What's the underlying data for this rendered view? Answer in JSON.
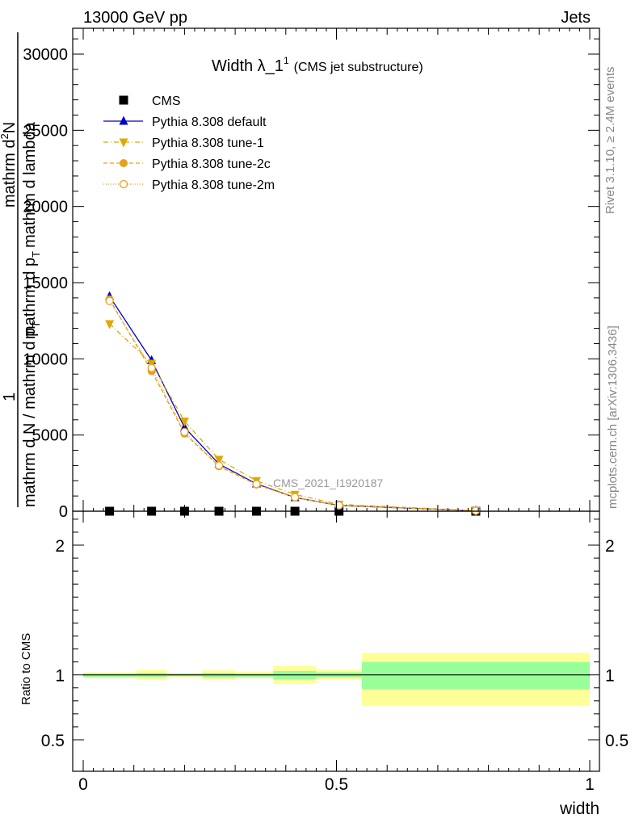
{
  "header": {
    "left": "13000 GeV pp",
    "right": "Jets"
  },
  "side_text": {
    "rivet": "Rivet 3.1.10, ≥ 2.4M events",
    "mcplots": "mcplots.cern.ch [arXiv:1306.3436]"
  },
  "chart_data": {
    "type": "line",
    "title": "Width λ_1",
    "title_sup": "1",
    "title_sub": "(CMS jet substructure)",
    "watermark": "CMS_2021_I1920187",
    "ylabel": {
      "one": "1",
      "mid": "mathrm d N / mathrm d p",
      "mid_sub": "T",
      "top": "mathrm d",
      "top_sup": "2",
      "top_tail": "N",
      "bottom": "mathrm d p",
      "bottom_sub": "T",
      "bottom_tail": "mathrm d lambda"
    },
    "xlabel": "width",
    "xlim": [
      0,
      1
    ],
    "ylim": [
      0,
      32000
    ],
    "x_ticks": [
      {
        "value": 0,
        "label": "0"
      },
      {
        "value": 0.5,
        "label": "0.5"
      },
      {
        "value": 1,
        "label": "1"
      }
    ],
    "y_ticks": [
      {
        "value": 0,
        "label": "0"
      },
      {
        "value": 5000,
        "label": "5000"
      },
      {
        "value": 10000,
        "label": "10000"
      },
      {
        "value": 15000,
        "label": "15000"
      },
      {
        "value": 20000,
        "label": "20000"
      },
      {
        "value": 25000,
        "label": "25000"
      },
      {
        "value": 30000,
        "label": "30000"
      }
    ],
    "bins": [
      0,
      0.105,
      0.165,
      0.235,
      0.3,
      0.375,
      0.46,
      0.55,
      1.0
    ],
    "x": [
      0.052,
      0.135,
      0.2,
      0.268,
      0.342,
      0.418,
      0.505,
      0.775
    ],
    "series": [
      {
        "name": "CMS",
        "marker": "square",
        "color": "#000000",
        "dash": "",
        "values": [
          0,
          0,
          0,
          0,
          0,
          0,
          0,
          0
        ]
      },
      {
        "name": "Pythia 8.308 default",
        "marker": "triangle-up",
        "color": "#0000cc",
        "dash": "",
        "values": [
          14100,
          9900,
          5500,
          3100,
          1800,
          900,
          380,
          30
        ]
      },
      {
        "name": "Pythia 8.308 tune-1",
        "marker": "triangle-down",
        "color": "#ddaa00",
        "dash": "6,3,1,3",
        "values": [
          12300,
          9700,
          5900,
          3400,
          2000,
          1100,
          450,
          40
        ]
      },
      {
        "name": "Pythia 8.308 tune-2c",
        "marker": "circle",
        "color": "#e8a020",
        "dash": "5,3",
        "values": [
          13900,
          9200,
          5100,
          2950,
          1750,
          900,
          370,
          35
        ]
      },
      {
        "name": "Pythia 8.308 tune-2m",
        "marker": "circle-open",
        "color": "#e8a020",
        "dash": "1,2",
        "values": [
          13800,
          9400,
          5200,
          3000,
          1780,
          920,
          380,
          35
        ]
      }
    ],
    "legend_position": "top-left",
    "ratio": {
      "ylabel": "Ratio to CMS",
      "ylim": [
        0.35,
        2.25
      ],
      "y_ticks": [
        {
          "value": 0.5,
          "label": "0.5"
        },
        {
          "value": 1,
          "label": "1"
        },
        {
          "value": 2,
          "label": "2"
        }
      ],
      "band_inner": [
        [
          0.985,
          1.01
        ],
        [
          0.985,
          1.015
        ],
        [
          0.99,
          1.01
        ],
        [
          0.98,
          1.015
        ],
        [
          0.985,
          1.01
        ],
        [
          0.965,
          1.03
        ],
        [
          0.98,
          1.02
        ],
        [
          0.89,
          1.1
        ]
      ],
      "band_outer": [
        [
          0.975,
          1.02
        ],
        [
          0.96,
          1.04
        ],
        [
          0.985,
          1.015
        ],
        [
          0.96,
          1.035
        ],
        [
          0.975,
          1.025
        ],
        [
          0.93,
          1.07
        ],
        [
          0.96,
          1.04
        ],
        [
          0.76,
          1.17
        ]
      ],
      "band_inner_color": "#99ff99",
      "band_outer_color": "#ffff99"
    }
  }
}
